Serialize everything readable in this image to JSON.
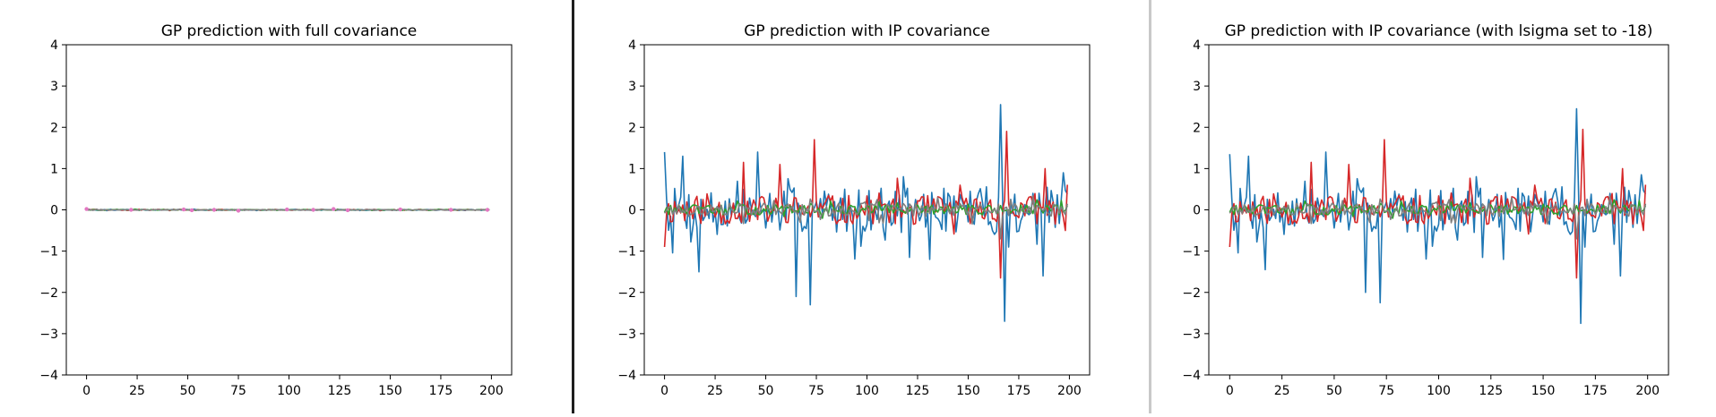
{
  "charts": [
    {
      "type": "line",
      "title": "GP prediction with full covariance",
      "xlim": [
        -10,
        210
      ],
      "ylim": [
        -4,
        4
      ],
      "xticks": [
        0,
        25,
        50,
        75,
        100,
        125,
        150,
        175,
        200
      ],
      "yticks": [
        -4,
        -3,
        -2,
        -1,
        0,
        1,
        2,
        3,
        4
      ],
      "series": [
        {
          "color": "#d62728",
          "seed": 101,
          "amp": 0.012,
          "spikes": []
        },
        {
          "color": "#1f77b4",
          "seed": 102,
          "amp": 0.01,
          "spikes": []
        },
        {
          "color": "#2ca02c",
          "seed": 103,
          "amp": 0.008,
          "spikes": []
        },
        {
          "color": "#7f7f7f",
          "seed": 104,
          "amp": 0.008,
          "spikes": []
        }
      ],
      "markers": {
        "color": "#e377c2",
        "x": [
          0,
          22,
          48,
          52,
          63,
          75,
          99,
          112,
          122,
          129,
          155,
          180,
          198
        ],
        "y": [
          0.02,
          0.0,
          0.01,
          -0.01,
          0.0,
          -0.02,
          0.01,
          0.0,
          0.02,
          -0.01,
          0.01,
          0.0,
          0.0
        ]
      }
    },
    {
      "type": "line",
      "title": "GP prediction with IP covariance",
      "xlim": [
        -10,
        210
      ],
      "ylim": [
        -4,
        4
      ],
      "xticks": [
        0,
        25,
        50,
        75,
        100,
        125,
        150,
        175,
        200
      ],
      "yticks": [
        -4,
        -3,
        -2,
        -1,
        0,
        1,
        2,
        3,
        4
      ],
      "series": [
        {
          "color": "#1f77b4",
          "seed": 7,
          "amp": 0.55,
          "spikes": [
            [
              0,
              1.4
            ],
            [
              9,
              1.3
            ],
            [
              17,
              -1.5
            ],
            [
              46,
              1.4
            ],
            [
              65,
              -2.1
            ],
            [
              72,
              -2.3
            ],
            [
              121,
              -1.15
            ],
            [
              131,
              -1.2
            ],
            [
              166,
              2.55
            ],
            [
              168,
              -2.7
            ],
            [
              187,
              -1.6
            ],
            [
              197,
              0.9
            ]
          ]
        },
        {
          "color": "#d62728",
          "seed": 11,
          "amp": 0.35,
          "spikes": [
            [
              0,
              -0.9
            ],
            [
              39,
              1.15
            ],
            [
              57,
              1.1
            ],
            [
              74,
              1.7
            ],
            [
              166,
              -1.65
            ],
            [
              169,
              1.9
            ],
            [
              188,
              1.0
            ],
            [
              198,
              -0.5
            ]
          ]
        },
        {
          "color": "#2ca02c",
          "seed": 13,
          "amp": 0.12,
          "spikes": []
        },
        {
          "color": "#7f7f7f",
          "seed": 17,
          "amp": 0.16,
          "spikes": [
            [
              166,
              -0.7
            ]
          ]
        }
      ]
    },
    {
      "type": "line",
      "title": "GP prediction with IP covariance (with lsigma set to -18)",
      "xlim": [
        -10,
        210
      ],
      "ylim": [
        -4,
        4
      ],
      "xticks": [
        0,
        25,
        50,
        75,
        100,
        125,
        150,
        175,
        200
      ],
      "yticks": [
        -4,
        -3,
        -2,
        -1,
        0,
        1,
        2,
        3,
        4
      ],
      "series": [
        {
          "color": "#1f77b4",
          "seed": 7,
          "amp": 0.55,
          "spikes": [
            [
              0,
              1.35
            ],
            [
              9,
              1.3
            ],
            [
              17,
              -1.45
            ],
            [
              46,
              1.4
            ],
            [
              65,
              -2.0
            ],
            [
              72,
              -2.25
            ],
            [
              121,
              -1.15
            ],
            [
              131,
              -1.2
            ],
            [
              166,
              2.45
            ],
            [
              168,
              -2.75
            ],
            [
              187,
              -1.6
            ],
            [
              197,
              0.85
            ]
          ]
        },
        {
          "color": "#d62728",
          "seed": 11,
          "amp": 0.35,
          "spikes": [
            [
              0,
              -0.9
            ],
            [
              39,
              1.15
            ],
            [
              57,
              1.1
            ],
            [
              74,
              1.7
            ],
            [
              166,
              -1.65
            ],
            [
              169,
              1.95
            ],
            [
              188,
              1.0
            ],
            [
              198,
              -0.5
            ]
          ]
        },
        {
          "color": "#2ca02c",
          "seed": 13,
          "amp": 0.12,
          "spikes": []
        },
        {
          "color": "#7f7f7f",
          "seed": 17,
          "amp": 0.16,
          "spikes": [
            [
              166,
              -0.7
            ]
          ]
        }
      ]
    }
  ]
}
